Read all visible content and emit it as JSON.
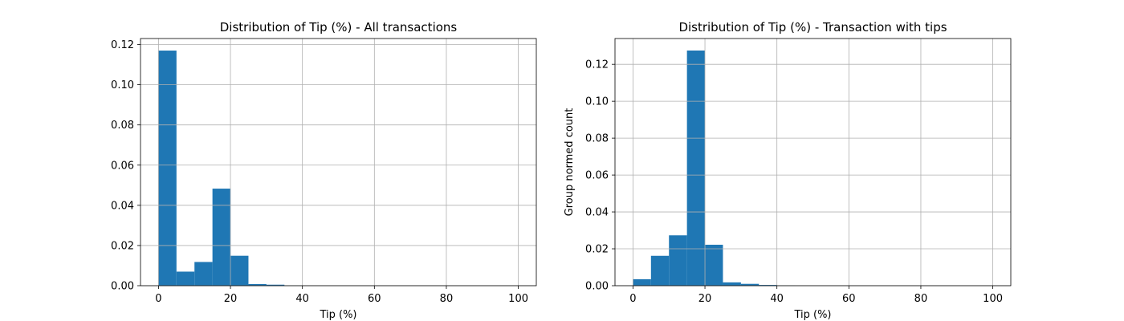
{
  "chart_data": [
    {
      "type": "bar",
      "title": "Distribution of Tip (%) - All transactions",
      "xlabel": "Tip (%)",
      "ylabel": "",
      "xlim": [
        -5,
        105
      ],
      "ylim": [
        0,
        0.123
      ],
      "grid": true,
      "color": "#1f77b4",
      "bin_width": 5,
      "bin_starts": [
        0,
        5,
        10,
        15,
        20,
        25,
        30,
        35,
        40,
        45,
        50,
        55,
        60,
        65,
        70,
        75,
        80,
        85,
        90,
        95
      ],
      "values": [
        0.117,
        0.007,
        0.0118,
        0.0483,
        0.0149,
        0.0008,
        0.0005,
        0.0001,
        0,
        0,
        0,
        0,
        0,
        0,
        0,
        0,
        0,
        0,
        0,
        0
      ],
      "x_ticks": [
        0,
        20,
        40,
        60,
        80,
        100
      ],
      "x_tick_labels": [
        "0",
        "20",
        "40",
        "60",
        "80",
        "100"
      ],
      "y_ticks": [
        0,
        0.02,
        0.04,
        0.06,
        0.08,
        0.1,
        0.12
      ],
      "y_tick_labels": [
        "0.00",
        "0.02",
        "0.04",
        "0.06",
        "0.08",
        "0.10",
        "0.12"
      ]
    },
    {
      "type": "bar",
      "title": "Distribution of Tip (%) - Transaction with tips",
      "xlabel": "Tip (%)",
      "ylabel": "Group normed count",
      "xlim": [
        -5,
        105
      ],
      "ylim": [
        0,
        0.134
      ],
      "grid": true,
      "color": "#1f77b4",
      "bin_width": 5,
      "bin_starts": [
        0,
        5,
        10,
        15,
        20,
        25,
        30,
        35,
        40,
        45,
        50,
        55,
        60,
        65,
        70,
        75,
        80,
        85,
        90,
        95
      ],
      "values": [
        0.0035,
        0.0162,
        0.0273,
        0.1275,
        0.0222,
        0.0018,
        0.001,
        0.0004,
        0.0001,
        0,
        0,
        0,
        0,
        0,
        0,
        0,
        0,
        0,
        0,
        0
      ],
      "x_ticks": [
        0,
        20,
        40,
        60,
        80,
        100
      ],
      "x_tick_labels": [
        "0",
        "20",
        "40",
        "60",
        "80",
        "100"
      ],
      "y_ticks": [
        0,
        0.02,
        0.04,
        0.06,
        0.08,
        0.1,
        0.12
      ],
      "y_tick_labels": [
        "0.00",
        "0.02",
        "0.04",
        "0.06",
        "0.08",
        "0.10",
        "0.12"
      ]
    }
  ]
}
